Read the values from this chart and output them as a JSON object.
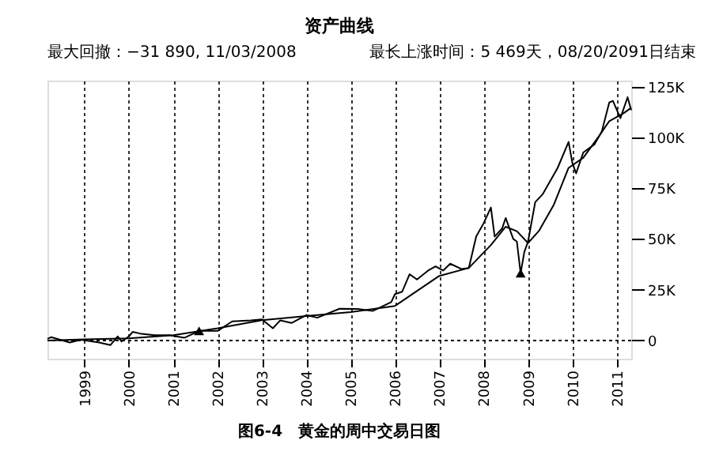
{
  "chart_data": {
    "type": "line",
    "title": "资产曲线",
    "annotations": [
      "最大回撤：−31 890, 11/03/2008",
      "最长上涨时间：5 469天，08/20/2091日结束",
      "图6-4　黄金的周中交易日图"
    ],
    "series": [
      {
        "color": "#000000",
        "x": [
          "1998-03",
          "1998-04",
          "1998-09",
          "1998-12",
          "1999-05",
          "1999-08",
          "1999-10",
          "1999-11",
          "2000-01",
          "2000-02",
          "2000-04",
          "2000-08",
          "2000-12",
          "2001-04",
          "2001-08",
          "2002-01",
          "2002-05",
          "2002-10",
          "2003-01",
          "2003-04",
          "2003-06",
          "2003-09",
          "2004-01",
          "2004-04",
          "2004-10",
          "2005-03",
          "2005-07",
          "2005-12",
          "2006-01",
          "2006-03",
          "2006-05",
          "2006-07",
          "2006-10",
          "2006-12",
          "2007-02",
          "2007-04",
          "2007-07",
          "2007-09",
          "2007-11",
          "2008-01",
          "2008-03",
          "2008-04",
          "2008-06",
          "2008-07",
          "2008-09",
          "2008-10",
          "2008-11",
          "2008-12",
          "2009-01",
          "2009-03",
          "2009-05",
          "2009-07",
          "2009-09",
          "2009-12",
          "2010-01",
          "2010-02",
          "2010-04",
          "2010-07",
          "2010-09",
          "2010-11",
          "2010-12",
          "2011-02",
          "2011-04",
          "2011-05"
        ],
        "values": [
          0.8,
          1.6,
          -1,
          0.3,
          -1,
          -2.3,
          2,
          -0.5,
          2,
          4.2,
          3.4,
          2.6,
          2.6,
          1.3,
          4.7,
          4.7,
          9.4,
          9.9,
          10.4,
          6,
          9.9,
          8.6,
          12.5,
          11.2,
          15.6,
          15.5,
          14.5,
          18.9,
          22.8,
          24,
          32.6,
          30,
          34.4,
          36.5,
          34.4,
          37.8,
          35.2,
          35.7,
          51.2,
          57.7,
          65.5,
          51.2,
          55.1,
          60.3,
          50,
          48.7,
          33.1,
          43.5,
          48.7,
          68.1,
          72,
          78.4,
          84.9,
          97.8,
          87.5,
          82.3,
          92.6,
          96.5,
          103,
          117.2,
          118,
          109.5,
          119.8,
          113.4
        ]
      },
      {
        "color": "#000000",
        "x": [
          "1998-03",
          "1999-01",
          "2000-01",
          "2001-01",
          "2002-01",
          "2003-01",
          "2004-01",
          "2005-01",
          "2006-01",
          "2007-01",
          "2007-09",
          "2008-03",
          "2008-07",
          "2008-10",
          "2009-01",
          "2009-04",
          "2009-08",
          "2009-12",
          "2010-04",
          "2010-08",
          "2010-11",
          "2011-03",
          "2011-05"
        ],
        "values": [
          0,
          0.5,
          1,
          2.6,
          6,
          10,
          12,
          14,
          17,
          31.8,
          35.7,
          47,
          56,
          53.8,
          48,
          54,
          66.8,
          85,
          90,
          100,
          108,
          112,
          114.6
        ]
      },
      {
        "type": "scatter",
        "marker": "triangle",
        "color": "#000000",
        "x": [
          "2001-08",
          "2008-11"
        ],
        "values": [
          4.7,
          33.1
        ]
      }
    ],
    "xlim": [
      "1998-03",
      "2011-05"
    ],
    "xticks": [
      "1999",
      "2000",
      "2001",
      "2002",
      "2003",
      "2004",
      "2005",
      "2006",
      "2007",
      "2008",
      "2009",
      "2010",
      "2011"
    ],
    "ylim": [
      -9,
      128
    ],
    "yticks": [
      0,
      {
        "value": 25,
        "label": "25K"
      },
      {
        "value": 50,
        "label": "50K"
      },
      {
        "value": 75,
        "label": "75K"
      },
      {
        "value": 100,
        "label": "100K"
      },
      {
        "value": 125,
        "label": "125K"
      }
    ],
    "ref_lines": [
      {
        "axis": "y",
        "value": 0,
        "line_style": "dotted"
      }
    ],
    "grid": "x",
    "line_style": "solid"
  }
}
